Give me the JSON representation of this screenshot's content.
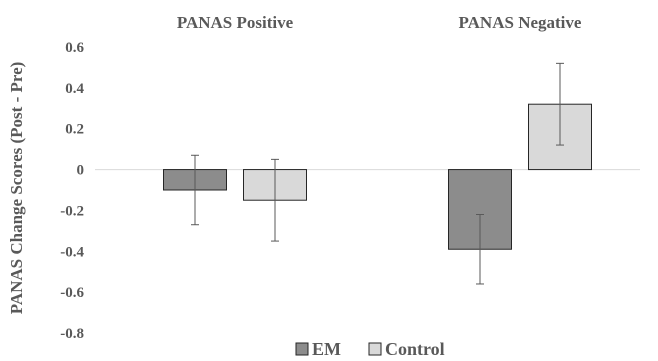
{
  "chart_data": {
    "type": "bar",
    "categories": [
      "PANAS Positive",
      "PANAS Negative"
    ],
    "series": [
      {
        "name": "EM",
        "color": "#8c8c8c",
        "values": [
          -0.1,
          -0.39
        ],
        "error": [
          0.17,
          0.17
        ]
      },
      {
        "name": "Control",
        "color": "#d9d9d9",
        "values": [
          -0.15,
          0.32
        ],
        "error": [
          0.2,
          0.2
        ]
      }
    ],
    "ylabel": "PANAS Change Scores (Post - Pre)",
    "ylim": [
      -0.8,
      0.6
    ],
    "yticks": [
      "0.6",
      "0.4",
      "0.2",
      "0",
      "-0.2",
      "-0.4",
      "-0.6",
      "-0.8"
    ],
    "ytick_values": [
      0.6,
      0.4,
      0.2,
      0,
      -0.2,
      -0.4,
      -0.6,
      -0.8
    ],
    "legend_position": "bottom",
    "grid": false
  }
}
